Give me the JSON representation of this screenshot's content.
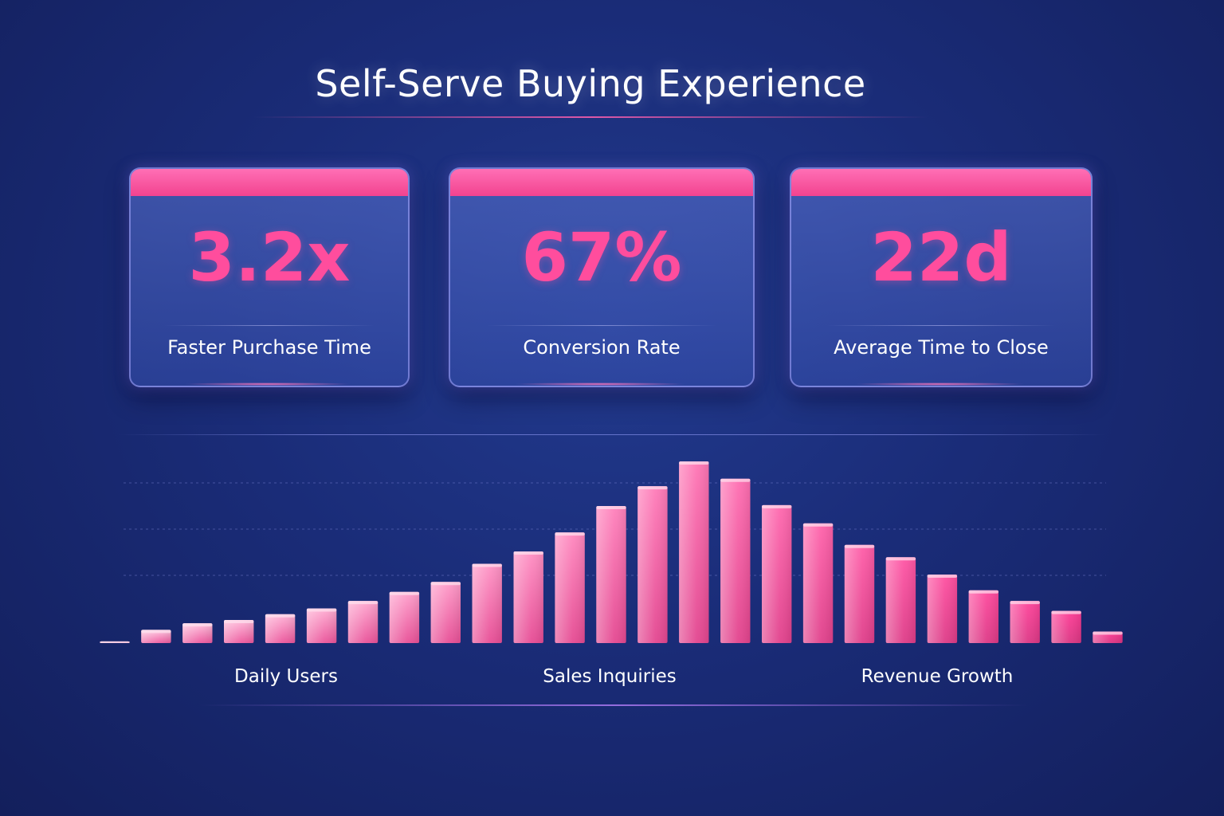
{
  "header": {
    "title": "Self-Serve Buying Experience"
  },
  "metrics": [
    {
      "value": "3.2x",
      "label": "Faster Purchase Time"
    },
    {
      "value": "67%",
      "label": "Conversion Rate"
    },
    {
      "value": "22d",
      "label": "Average Time to Close"
    }
  ],
  "colors": {
    "background": "#1a2c78",
    "accent": "#ff4d9d",
    "card_band": "#f2438f",
    "bar_light": "#ffc6dd",
    "bar_dark": "#e8307f"
  },
  "chart_data": {
    "type": "bar",
    "title": "",
    "xlabel": "",
    "ylabel": "",
    "category_labels": [
      "Daily Users",
      "Sales Inquiries",
      "Revenue Growth"
    ],
    "values": [
      2,
      16,
      24,
      28,
      35,
      42,
      51,
      62,
      74,
      96,
      111,
      134,
      166,
      190,
      220,
      199,
      167,
      145,
      119,
      104,
      83,
      64,
      51,
      39,
      14
    ],
    "grid": true,
    "legend": "none"
  }
}
